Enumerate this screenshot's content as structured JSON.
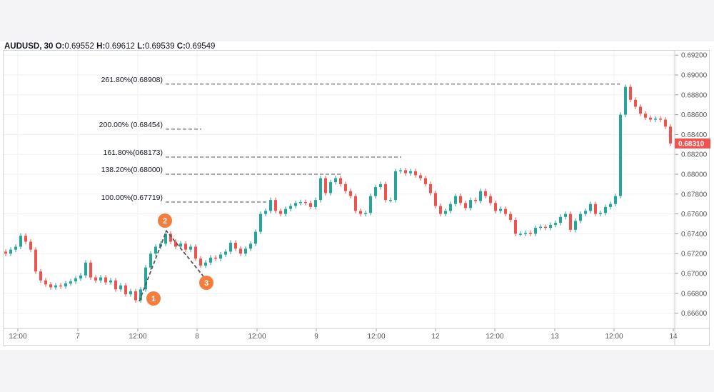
{
  "header": {
    "symbol": "AUDUSD, 30",
    "o_label": "O:",
    "o": "0.69552",
    "h_label": "H:",
    "h": "0.69612",
    "l_label": "L:",
    "l": "0.69539",
    "c_label": "C:",
    "c": "0.69549"
  },
  "chart_data": {
    "type": "candlestick",
    "title": "AUDUSD, 30",
    "ylim": [
      0.6655,
      0.6925
    ],
    "y_ticks": [
      "0.69200",
      "0.69000",
      "0.68800",
      "0.68600",
      "0.68400",
      "0.68200",
      "0.68000",
      "0.67800",
      "0.67600",
      "0.67400",
      "0.67200",
      "0.67000",
      "0.66800",
      "0.66600"
    ],
    "x_ticks": [
      "12:00",
      "7",
      "12:00",
      "8",
      "12:00",
      "9",
      "12:00",
      "12",
      "12:00",
      "13",
      "12:00",
      "14"
    ],
    "current_price": {
      "label": "0.68310",
      "value": 0.6831,
      "color": "#ef5350"
    },
    "grid": true,
    "colors": {
      "up": "#26a69a",
      "down": "#ef5350",
      "fib_line": "#888888",
      "marker": "#f47c3c"
    },
    "closes": [
      0.672,
      0.6724,
      0.6727,
      0.6738,
      0.6732,
      0.6724,
      0.6702,
      0.6693,
      0.6689,
      0.6686,
      0.6688,
      0.6687,
      0.669,
      0.6692,
      0.6695,
      0.6698,
      0.6711,
      0.6696,
      0.6693,
      0.6696,
      0.6691,
      0.6693,
      0.6684,
      0.6688,
      0.6679,
      0.6682,
      0.6673,
      0.6684,
      0.6706,
      0.672,
      0.6727,
      0.673,
      0.674,
      0.6732,
      0.6727,
      0.673,
      0.6724,
      0.6727,
      0.6715,
      0.6708,
      0.6711,
      0.6716,
      0.6715,
      0.6719,
      0.6722,
      0.6731,
      0.6725,
      0.672,
      0.6725,
      0.673,
      0.6742,
      0.676,
      0.6763,
      0.6774,
      0.6763,
      0.676,
      0.6765,
      0.6768,
      0.6771,
      0.6772,
      0.6771,
      0.6767,
      0.6774,
      0.6796,
      0.6781,
      0.6792,
      0.6796,
      0.679,
      0.6783,
      0.6778,
      0.6763,
      0.676,
      0.6761,
      0.6778,
      0.6787,
      0.679,
      0.6774,
      0.6774,
      0.6803,
      0.6804,
      0.6801,
      0.6803,
      0.6799,
      0.6796,
      0.679,
      0.6781,
      0.6768,
      0.676,
      0.6763,
      0.677,
      0.6778,
      0.6771,
      0.6766,
      0.6774,
      0.6773,
      0.6783,
      0.6778,
      0.6771,
      0.6763,
      0.6765,
      0.676,
      0.6754,
      0.674,
      0.674,
      0.6741,
      0.674,
      0.6746,
      0.6747,
      0.6746,
      0.6749,
      0.6751,
      0.6757,
      0.676,
      0.6744,
      0.6753,
      0.676,
      0.6763,
      0.677,
      0.676,
      0.6761,
      0.6767,
      0.677,
      0.6778,
      0.686,
      0.6888,
      0.6875,
      0.6868,
      0.6861,
      0.6857,
      0.6855,
      0.6856,
      0.6855,
      0.6848,
      0.6831
    ],
    "fib_levels": [
      {
        "label": "261.80%(0.68908)",
        "value": 0.68908
      },
      {
        "label": "200.00% (0.68454)",
        "value": 0.68454
      },
      {
        "label": "161.80%(068173)",
        "value": 0.68173
      },
      {
        "label": "138.20%(0.68000)",
        "value": 0.68
      },
      {
        "label": "100.00%(0.67719)",
        "value": 0.67719
      }
    ],
    "points": [
      {
        "label": "1",
        "value": 0.6672
      },
      {
        "label": "2",
        "value": 0.6743
      },
      {
        "label": "3",
        "value": 0.6697
      }
    ]
  }
}
